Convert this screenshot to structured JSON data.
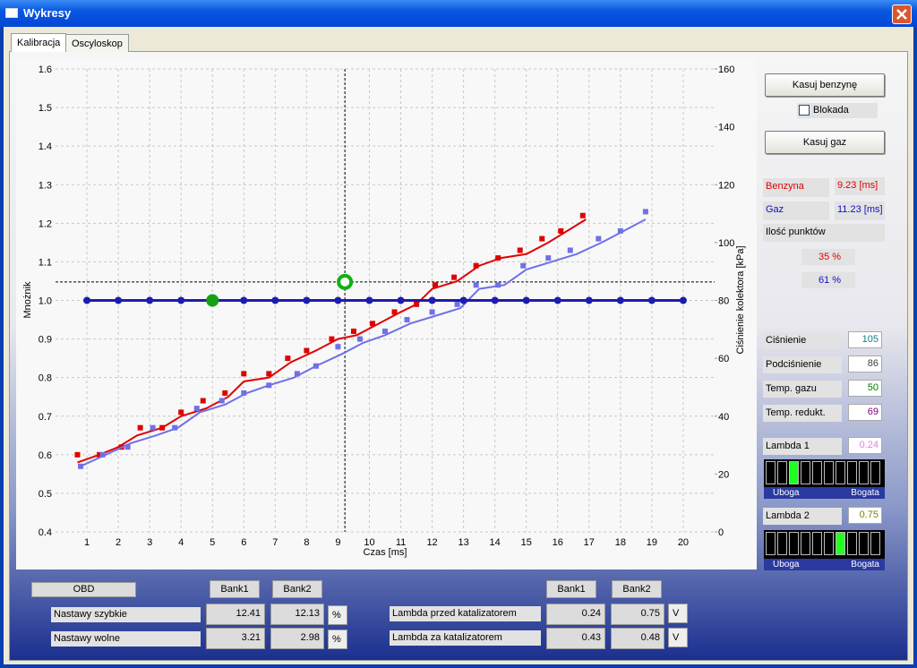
{
  "window": {
    "title": "Wykresy"
  },
  "tabs": [
    "Kalibracja",
    "Oscyloskop"
  ],
  "chart_data": {
    "type": "scatter",
    "xlabel": "Czas [ms]",
    "ylabel": "Mnożnik",
    "y2label": "Ciśnienie kolektora [kPa]",
    "xlim": [
      0,
      21
    ],
    "xticks": [
      1,
      2,
      3,
      4,
      5,
      6,
      7,
      8,
      9,
      10,
      11,
      12,
      13,
      14,
      15,
      16,
      17,
      18,
      19,
      20
    ],
    "ylim": [
      0.4,
      1.6
    ],
    "yticks": [
      0.4,
      0.5,
      0.6,
      0.7,
      0.8,
      0.9,
      {
        "value": 1,
        "label": "1.0"
      },
      1.1,
      1.2,
      1.3,
      1.4,
      1.5,
      1.6
    ],
    "y2lim": [
      0,
      160
    ],
    "y2ticks": [
      0,
      20,
      40,
      60,
      80,
      100,
      120,
      140,
      160
    ],
    "grid": true,
    "series": [
      {
        "color": "#e00000",
        "style": "markers",
        "x": [
          0.7,
          1.4,
          2.1,
          2.7,
          3.4,
          4.0,
          4.7,
          5.4,
          6.0,
          6.8,
          7.4,
          8.0,
          8.8,
          9.5,
          10.1,
          10.8,
          11.5,
          12.1,
          12.7,
          13.4,
          14.1,
          14.8,
          15.5,
          16.1,
          16.8
        ],
        "values": [
          0.6,
          0.6,
          0.62,
          0.67,
          0.67,
          0.71,
          0.74,
          0.76,
          0.81,
          0.81,
          0.85,
          0.87,
          0.9,
          0.92,
          0.94,
          0.97,
          0.99,
          1.04,
          1.06,
          1.09,
          1.11,
          1.13,
          1.16,
          1.18,
          1.22
        ]
      },
      {
        "color": "#e00000",
        "style": "line",
        "x": [
          0.7,
          1.4,
          2,
          2.6,
          3.4,
          4,
          4.8,
          5.5,
          6,
          6.8,
          7.5,
          8.3,
          9,
          9.6,
          10.3,
          11,
          11.5,
          12,
          12.8,
          13.5,
          14.2,
          15,
          15.7,
          16.3,
          16.9
        ],
        "values": [
          0.58,
          0.6,
          0.62,
          0.65,
          0.67,
          0.7,
          0.72,
          0.75,
          0.79,
          0.8,
          0.84,
          0.87,
          0.9,
          0.91,
          0.94,
          0.97,
          0.99,
          1.03,
          1.05,
          1.09,
          1.11,
          1.12,
          1.15,
          1.18,
          1.21
        ]
      },
      {
        "color": "#7070e8",
        "style": "markers",
        "x": [
          0.8,
          1.5,
          2.3,
          3.1,
          3.8,
          4.5,
          5.3,
          6.0,
          6.8,
          7.7,
          8.3,
          9.0,
          9.7,
          10.5,
          11.2,
          12.0,
          12.8,
          13.4,
          14.1,
          14.9,
          15.7,
          16.4,
          17.3,
          18.0,
          18.8
        ],
        "values": [
          0.57,
          0.6,
          0.62,
          0.67,
          0.67,
          0.72,
          0.74,
          0.76,
          0.78,
          0.81,
          0.83,
          0.88,
          0.9,
          0.92,
          0.95,
          0.97,
          0.99,
          1.04,
          1.04,
          1.09,
          1.11,
          1.13,
          1.16,
          1.18,
          1.23
        ]
      },
      {
        "color": "#7070e8",
        "style": "line",
        "x": [
          0.8,
          1.6,
          2.4,
          3.2,
          3.9,
          4.6,
          5.4,
          6.1,
          6.8,
          7.6,
          8.3,
          9.1,
          9.8,
          10.5,
          11.3,
          12.1,
          12.9,
          13.5,
          14.3,
          15,
          15.8,
          16.6,
          17.4,
          18.1,
          18.8
        ],
        "values": [
          0.57,
          0.6,
          0.63,
          0.65,
          0.67,
          0.71,
          0.73,
          0.76,
          0.78,
          0.8,
          0.83,
          0.86,
          0.89,
          0.91,
          0.94,
          0.96,
          0.98,
          1.03,
          1.04,
          1.08,
          1.1,
          1.12,
          1.15,
          1.18,
          1.21
        ]
      },
      {
        "color": "#1c1cae",
        "style": "line+markers",
        "x": [
          1,
          2,
          3,
          4,
          5,
          6,
          7,
          8,
          9,
          10,
          11,
          12,
          13,
          14,
          15,
          16,
          17,
          18,
          19,
          20
        ],
        "values": [
          1,
          1,
          1,
          1,
          1,
          1,
          1,
          1,
          1,
          1,
          1,
          1,
          1,
          1,
          1,
          1,
          1,
          1,
          1,
          1
        ]
      },
      {
        "color": "#16a016",
        "style": "big-marker",
        "x": [
          5
        ],
        "values": [
          1
        ]
      }
    ],
    "cursor": {
      "x": 9.22,
      "y": 1.048,
      "color": "#10b010"
    }
  },
  "side": {
    "btn_benzyna": "Kasuj benzynę",
    "blokada": "Blokada",
    "btn_gaz": "Kasuj gaz",
    "benzyna_label": "Benzyna",
    "benzyna_value": "9.23 [ms]",
    "gaz_label": "Gaz",
    "gaz_value": "11.23 [ms]",
    "points_label": "Ilość punktów",
    "points_benzyna": "35 %",
    "points_gaz": "61 %",
    "readings": [
      {
        "label": "Ciśnienie",
        "value": 105
      },
      {
        "label": "Podciśnienie",
        "value": 86
      },
      {
        "label": "Temp. gazu",
        "value": 50
      },
      {
        "label": "Temp. redukt.",
        "value": 69
      }
    ],
    "lambda1": {
      "label": "Lambda 1",
      "value": 0.24,
      "active_segment": 2
    },
    "lambda2": {
      "label": "Lambda 2",
      "value": 0.75,
      "active_segment": 6
    },
    "lean": "Uboga",
    "rich": "Bogata"
  },
  "obd": {
    "title": "OBD",
    "bank1": "Bank1",
    "bank2": "Bank2",
    "rows": [
      {
        "label": "Nastawy szybkie",
        "bank1": 12.41,
        "bank2": 12.13,
        "unit": "%"
      },
      {
        "label": "Nastawy wolne",
        "bank1": 3.21,
        "bank2": 2.98,
        "unit": "%"
      }
    ],
    "lambda_rows": [
      {
        "label": "Lambda przed katalizatorem",
        "bank1": 0.24,
        "bank2": 0.75,
        "unit": "V"
      },
      {
        "label": "Lambda za katalizatorem",
        "bank1": 0.43,
        "bank2": 0.48,
        "unit": "V"
      }
    ]
  }
}
